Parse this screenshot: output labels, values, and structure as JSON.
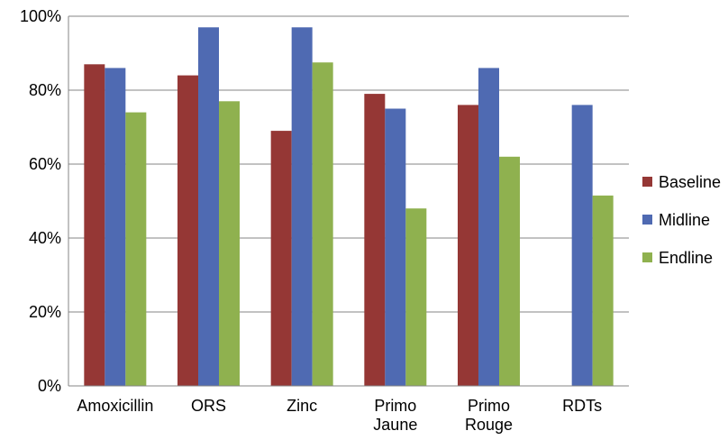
{
  "chart_data": {
    "type": "bar",
    "categories": [
      [
        "Amoxicillin"
      ],
      [
        "ORS"
      ],
      [
        "Zinc"
      ],
      [
        "Primo",
        "Jaune"
      ],
      [
        "Primo",
        "Rouge"
      ],
      [
        "RDTs"
      ]
    ],
    "series": [
      {
        "name": "Baseline",
        "color": "#953735",
        "values": [
          87,
          84,
          69,
          79,
          76,
          null
        ]
      },
      {
        "name": "Midline",
        "color": "#4f6ab2",
        "values": [
          86,
          97,
          97,
          75,
          86,
          76
        ]
      },
      {
        "name": "Endline",
        "color": "#8fb14f",
        "values": [
          74,
          77,
          87.5,
          48,
          62,
          51.5
        ]
      }
    ],
    "ylim": [
      0,
      100
    ],
    "yticks": [
      0,
      20,
      40,
      60,
      80,
      100
    ],
    "ytick_labels": [
      "0%",
      "20%",
      "40%",
      "60%",
      "80%",
      "100%"
    ],
    "grid": true,
    "legend": "right",
    "title": "",
    "xlabel": "",
    "ylabel": ""
  }
}
